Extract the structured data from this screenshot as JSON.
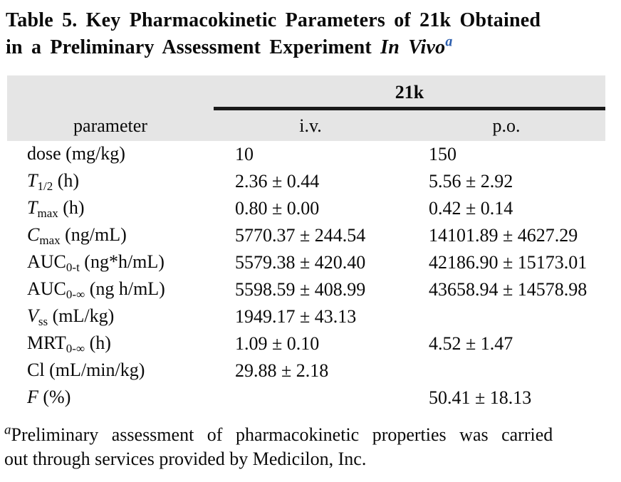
{
  "title": {
    "line1": "Table 5. Key Pharmacokinetic Parameters of 21k Obtained",
    "line2": "in a Preliminary Assessment Experiment ",
    "line2_italic": "In Vivo",
    "footnote_marker": "a"
  },
  "colors": {
    "header_bg": "#e5e5e5",
    "header_rule": "#1a1a1a",
    "footnote_marker_blue": "#2d5fae",
    "text": "#0a0a0a"
  },
  "table": {
    "group_header": "21k",
    "columns": [
      "parameter",
      "i.v.",
      "p.o."
    ],
    "rows": [
      {
        "param": {
          "main": "dose",
          "italic": "false",
          "sub": "",
          "rest": " (mg/kg)"
        },
        "iv": "10",
        "po": "150"
      },
      {
        "param": {
          "main": "T",
          "italic": "true",
          "sub": "1/2",
          "rest": " (h)"
        },
        "iv": "2.36 ± 0.44",
        "po": "5.56 ± 2.92"
      },
      {
        "param": {
          "main": "T",
          "italic": "true",
          "sub": "max",
          "rest": " (h)"
        },
        "iv": "0.80 ± 0.00",
        "po": "0.42 ± 0.14"
      },
      {
        "param": {
          "main": "C",
          "italic": "true",
          "sub": "max",
          "rest": " (ng/mL)"
        },
        "iv": "5770.37 ± 244.54",
        "po": "14101.89 ± 4627.29"
      },
      {
        "param": {
          "main": "AUC",
          "italic": "false",
          "sub": "0-t",
          "rest": " (ng*h/mL)"
        },
        "iv": "5579.38 ± 420.40",
        "po": "42186.90 ± 15173.01"
      },
      {
        "param": {
          "main": "AUC",
          "italic": "false",
          "sub": "0-∞",
          "rest": " (ng h/mL)"
        },
        "iv": "5598.59 ± 408.99",
        "po": "43658.94 ± 14578.98"
      },
      {
        "param": {
          "main": "V",
          "italic": "true",
          "sub": "ss",
          "rest": " (mL/kg)"
        },
        "iv": "1949.17 ± 43.13",
        "po": ""
      },
      {
        "param": {
          "main": "MRT",
          "italic": "false",
          "sub": "0-∞",
          "rest": " (h)"
        },
        "iv": "1.09 ± 0.10",
        "po": "4.52 ± 1.47"
      },
      {
        "param": {
          "main": "Cl",
          "italic": "false",
          "sub": "",
          "rest": " (mL/min/kg)"
        },
        "iv": "29.88 ± 2.18",
        "po": ""
      },
      {
        "param": {
          "main": "F",
          "italic": "true",
          "sub": "",
          "rest": " (%)"
        },
        "iv": "",
        "po": "50.41 ± 18.13"
      }
    ]
  },
  "footnote": {
    "marker": "a",
    "line1": "Preliminary assessment of pharmacokinetic properties was carried",
    "line2": "out through services provided by Medicilon, Inc."
  }
}
